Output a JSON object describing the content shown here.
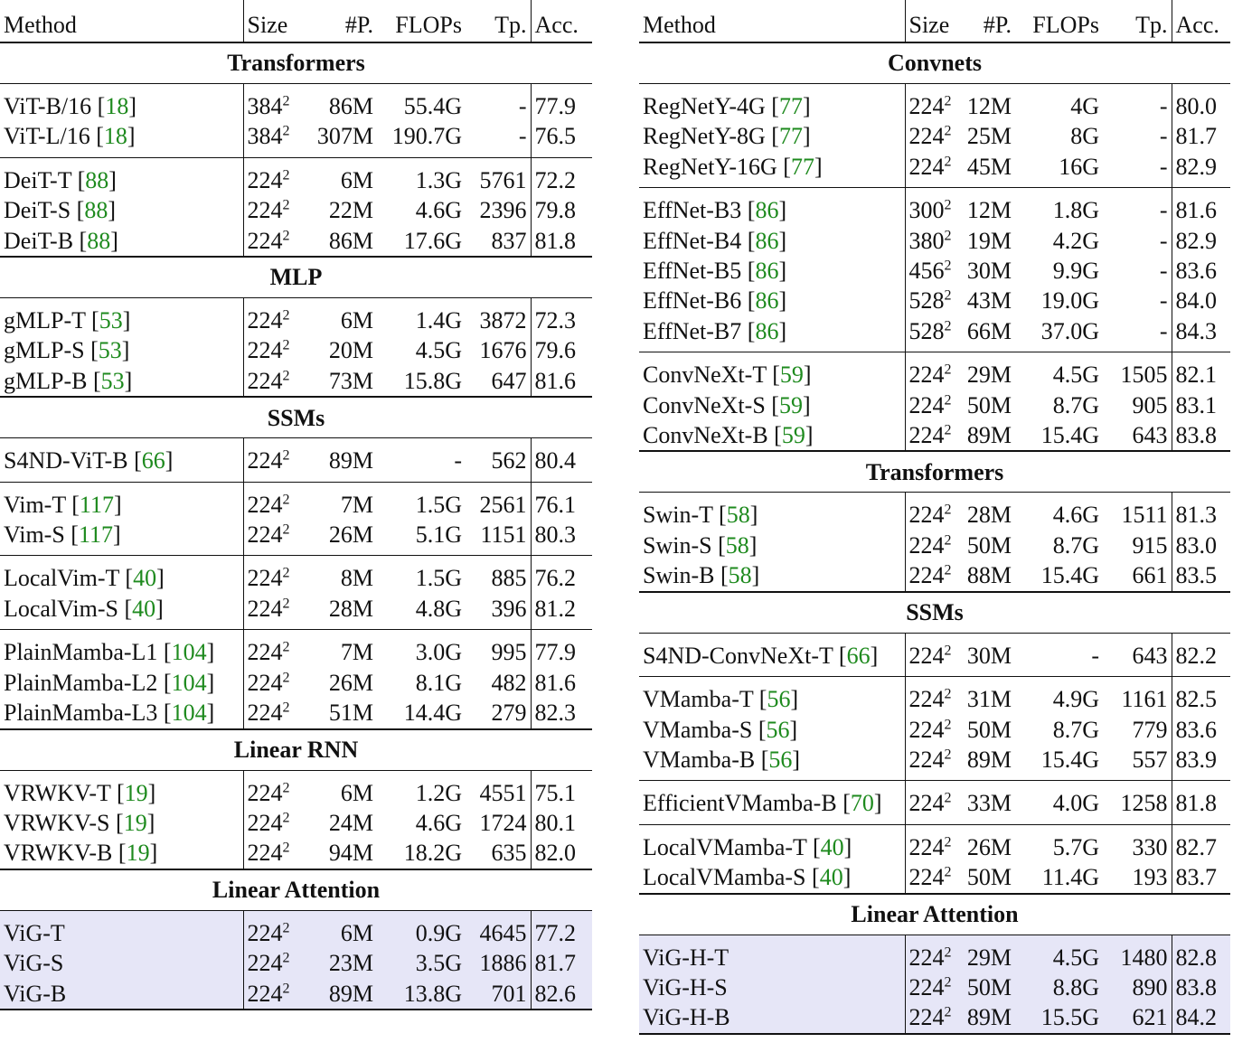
{
  "columns": {
    "method": "Method",
    "size": "Size",
    "params": "#P.",
    "flops": "FLOPs",
    "tp": "Tp.",
    "acc": "Acc."
  },
  "colors": {
    "citation": "#1e8a1e",
    "highlight": "#e6e6f7",
    "rule": "#111111"
  },
  "left": {
    "groups": {
      "transformers": "Transformers",
      "mlp": "MLP",
      "ssms": "SSMs",
      "linear_rnn": "Linear RNN",
      "linear_attention": "Linear Attention"
    },
    "rows": {
      "vit_b16": {
        "name": "ViT-B/16",
        "ref": "18",
        "size": "384",
        "params": "86M",
        "flops": "55.4G",
        "tp": "-",
        "acc": "77.9"
      },
      "vit_l16": {
        "name": "ViT-L/16",
        "ref": "18",
        "size": "384",
        "params": "307M",
        "flops": "190.7G",
        "tp": "-",
        "acc": "76.5"
      },
      "deit_t": {
        "name": "DeiT-T",
        "ref": "88",
        "size": "224",
        "params": "6M",
        "flops": "1.3G",
        "tp": "5761",
        "acc": "72.2"
      },
      "deit_s": {
        "name": "DeiT-S",
        "ref": "88",
        "size": "224",
        "params": "22M",
        "flops": "4.6G",
        "tp": "2396",
        "acc": "79.8"
      },
      "deit_b": {
        "name": "DeiT-B",
        "ref": "88",
        "size": "224",
        "params": "86M",
        "flops": "17.6G",
        "tp": "837",
        "acc": "81.8"
      },
      "gmlp_t": {
        "name": "gMLP-T",
        "ref": "53",
        "size": "224",
        "params": "6M",
        "flops": "1.4G",
        "tp": "3872",
        "acc": "72.3"
      },
      "gmlp_s": {
        "name": "gMLP-S",
        "ref": "53",
        "size": "224",
        "params": "20M",
        "flops": "4.5G",
        "tp": "1676",
        "acc": "79.6"
      },
      "gmlp_b": {
        "name": "gMLP-B",
        "ref": "53",
        "size": "224",
        "params": "73M",
        "flops": "15.8G",
        "tp": "647",
        "acc": "81.6"
      },
      "s4nd_vit_b": {
        "name": "S4ND-ViT-B",
        "ref": "66",
        "size": "224",
        "params": "89M",
        "flops": "-",
        "tp": "562",
        "acc": "80.4"
      },
      "vim_t": {
        "name": "Vim-T",
        "ref": "117",
        "size": "224",
        "params": "7M",
        "flops": "1.5G",
        "tp": "2561",
        "acc": "76.1"
      },
      "vim_s": {
        "name": "Vim-S",
        "ref": "117",
        "size": "224",
        "params": "26M",
        "flops": "5.1G",
        "tp": "1151",
        "acc": "80.3"
      },
      "localvim_t": {
        "name": "LocalVim-T",
        "ref": "40",
        "size": "224",
        "params": "8M",
        "flops": "1.5G",
        "tp": "885",
        "acc": "76.2"
      },
      "localvim_s": {
        "name": "LocalVim-S",
        "ref": "40",
        "size": "224",
        "params": "28M",
        "flops": "4.8G",
        "tp": "396",
        "acc": "81.2"
      },
      "plainmamba_l1": {
        "name": "PlainMamba-L1",
        "ref": "104",
        "size": "224",
        "params": "7M",
        "flops": "3.0G",
        "tp": "995",
        "acc": "77.9"
      },
      "plainmamba_l2": {
        "name": "PlainMamba-L2",
        "ref": "104",
        "size": "224",
        "params": "26M",
        "flops": "8.1G",
        "tp": "482",
        "acc": "81.6"
      },
      "plainmamba_l3": {
        "name": "PlainMamba-L3",
        "ref": "104",
        "size": "224",
        "params": "51M",
        "flops": "14.4G",
        "tp": "279",
        "acc": "82.3"
      },
      "vrwkv_t": {
        "name": "VRWKV-T",
        "ref": "19",
        "size": "224",
        "params": "6M",
        "flops": "1.2G",
        "tp": "4551",
        "acc": "75.1"
      },
      "vrwkv_s": {
        "name": "VRWKV-S",
        "ref": "19",
        "size": "224",
        "params": "24M",
        "flops": "4.6G",
        "tp": "1724",
        "acc": "80.1"
      },
      "vrwkv_b": {
        "name": "VRWKV-B",
        "ref": "19",
        "size": "224",
        "params": "94M",
        "flops": "18.2G",
        "tp": "635",
        "acc": "82.0"
      },
      "vig_t": {
        "name": "ViG-T",
        "size": "224",
        "params": "6M",
        "flops": "0.9G",
        "tp": "4645",
        "acc": "77.2"
      },
      "vig_s": {
        "name": "ViG-S",
        "size": "224",
        "params": "23M",
        "flops": "3.5G",
        "tp": "1886",
        "acc": "81.7"
      },
      "vig_b": {
        "name": "ViG-B",
        "size": "224",
        "params": "89M",
        "flops": "13.8G",
        "tp": "701",
        "acc": "82.6"
      }
    }
  },
  "right": {
    "groups": {
      "convnets": "Convnets",
      "transformers": "Transformers",
      "ssms": "SSMs",
      "linear_attention": "Linear Attention"
    },
    "rows": {
      "regnety_4g": {
        "name": "RegNetY-4G",
        "ref": "77",
        "size": "224",
        "params": "12M",
        "flops": "4G",
        "tp": "-",
        "acc": "80.0"
      },
      "regnety_8g": {
        "name": "RegNetY-8G",
        "ref": "77",
        "size": "224",
        "params": "25M",
        "flops": "8G",
        "tp": "-",
        "acc": "81.7"
      },
      "regnety_16g": {
        "name": "RegNetY-16G",
        "ref": "77",
        "size": "224",
        "params": "45M",
        "flops": "16G",
        "tp": "-",
        "acc": "82.9"
      },
      "effnet_b3": {
        "name": "EffNet-B3",
        "ref": "86",
        "size": "300",
        "params": "12M",
        "flops": "1.8G",
        "tp": "-",
        "acc": "81.6"
      },
      "effnet_b4": {
        "name": "EffNet-B4",
        "ref": "86",
        "size": "380",
        "params": "19M",
        "flops": "4.2G",
        "tp": "-",
        "acc": "82.9"
      },
      "effnet_b5": {
        "name": "EffNet-B5",
        "ref": "86",
        "size": "456",
        "params": "30M",
        "flops": "9.9G",
        "tp": "-",
        "acc": "83.6"
      },
      "effnet_b6": {
        "name": "EffNet-B6",
        "ref": "86",
        "size": "528",
        "params": "43M",
        "flops": "19.0G",
        "tp": "-",
        "acc": "84.0"
      },
      "effnet_b7": {
        "name": "EffNet-B7",
        "ref": "86",
        "size": "528",
        "params": "66M",
        "flops": "37.0G",
        "tp": "-",
        "acc": "84.3"
      },
      "convnext_t": {
        "name": "ConvNeXt-T",
        "ref": "59",
        "size": "224",
        "params": "29M",
        "flops": "4.5G",
        "tp": "1505",
        "acc": "82.1"
      },
      "convnext_s": {
        "name": "ConvNeXt-S",
        "ref": "59",
        "size": "224",
        "params": "50M",
        "flops": "8.7G",
        "tp": "905",
        "acc": "83.1"
      },
      "convnext_b": {
        "name": "ConvNeXt-B",
        "ref": "59",
        "size": "224",
        "params": "89M",
        "flops": "15.4G",
        "tp": "643",
        "acc": "83.8"
      },
      "swin_t": {
        "name": "Swin-T",
        "ref": "58",
        "size": "224",
        "params": "28M",
        "flops": "4.6G",
        "tp": "1511",
        "acc": "81.3"
      },
      "swin_s": {
        "name": "Swin-S",
        "ref": "58",
        "size": "224",
        "params": "50M",
        "flops": "8.7G",
        "tp": "915",
        "acc": "83.0"
      },
      "swin_b": {
        "name": "Swin-B",
        "ref": "58",
        "size": "224",
        "params": "88M",
        "flops": "15.4G",
        "tp": "661",
        "acc": "83.5"
      },
      "s4nd_convnext_t": {
        "name": "S4ND-ConvNeXt-T",
        "ref": "66",
        "size": "224",
        "params": "30M",
        "flops": "-",
        "tp": "643",
        "acc": "82.2"
      },
      "vmamba_t": {
        "name": "VMamba-T",
        "ref": "56",
        "size": "224",
        "params": "31M",
        "flops": "4.9G",
        "tp": "1161",
        "acc": "82.5"
      },
      "vmamba_s": {
        "name": "VMamba-S",
        "ref": "56",
        "size": "224",
        "params": "50M",
        "flops": "8.7G",
        "tp": "779",
        "acc": "83.6"
      },
      "vmamba_b": {
        "name": "VMamba-B",
        "ref": "56",
        "size": "224",
        "params": "89M",
        "flops": "15.4G",
        "tp": "557",
        "acc": "83.9"
      },
      "efficientvmamba_b": {
        "name": "EfficientVMamba-B",
        "ref": "70",
        "size": "224",
        "params": "33M",
        "flops": "4.0G",
        "tp": "1258",
        "acc": "81.8"
      },
      "localvmamba_t": {
        "name": "LocalVMamba-T",
        "ref": "40",
        "size": "224",
        "params": "26M",
        "flops": "5.7G",
        "tp": "330",
        "acc": "82.7"
      },
      "localvmamba_s": {
        "name": "LocalVMamba-S",
        "ref": "40",
        "size": "224",
        "params": "50M",
        "flops": "11.4G",
        "tp": "193",
        "acc": "83.7"
      },
      "vig_h_t": {
        "name": "ViG-H-T",
        "size": "224",
        "params": "29M",
        "flops": "4.5G",
        "tp": "1480",
        "acc": "82.8"
      },
      "vig_h_s": {
        "name": "ViG-H-S",
        "size": "224",
        "params": "50M",
        "flops": "8.8G",
        "tp": "890",
        "acc": "83.8"
      },
      "vig_h_b": {
        "name": "ViG-H-B",
        "size": "224",
        "params": "89M",
        "flops": "15.5G",
        "tp": "621",
        "acc": "84.2"
      }
    }
  }
}
